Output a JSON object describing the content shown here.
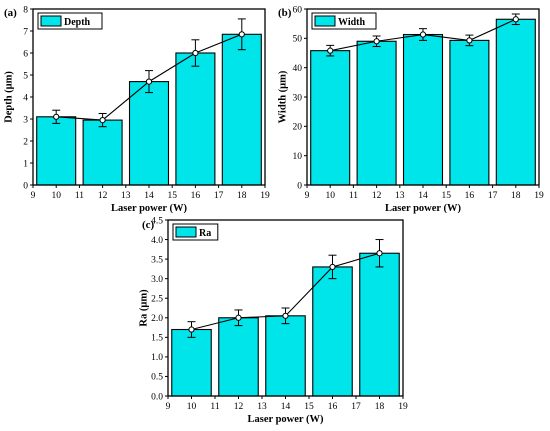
{
  "colors": {
    "bar": "#00e5ea",
    "stroke": "#000000",
    "marker": "#ffffff"
  },
  "chart_data": [
    {
      "type": "bar",
      "panel_label": "(a)",
      "xlabel": "Laser power (W)",
      "ylabel": "Depth (μm)",
      "legend": "Depth",
      "legend_position": "top-left",
      "xlim": [
        9,
        19
      ],
      "ylim": [
        0,
        8
      ],
      "xticks": [
        9,
        10,
        11,
        12,
        13,
        14,
        15,
        16,
        17,
        18,
        19
      ],
      "yticks": [
        0,
        1,
        2,
        3,
        4,
        5,
        6,
        7,
        8
      ],
      "series": [
        {
          "x": [
            10,
            12,
            14,
            16,
            18
          ],
          "values": [
            3.1,
            2.95,
            4.7,
            6.0,
            6.85
          ],
          "errors": [
            0.3,
            0.3,
            0.5,
            0.6,
            0.7
          ]
        }
      ],
      "trend_line": true
    },
    {
      "type": "bar",
      "panel_label": "(b)",
      "xlabel": "Laser power (W)",
      "ylabel": "Width (μm)",
      "legend": "Width",
      "legend_position": "top-left",
      "xlim": [
        9,
        19
      ],
      "ylim": [
        0,
        60
      ],
      "xticks": [
        9,
        10,
        11,
        12,
        13,
        14,
        15,
        16,
        17,
        18,
        19
      ],
      "yticks": [
        0,
        10,
        20,
        30,
        40,
        50,
        60
      ],
      "series": [
        {
          "x": [
            10,
            12,
            14,
            16,
            18
          ],
          "values": [
            45.8,
            49.0,
            51.3,
            49.3,
            56.5
          ],
          "errors": [
            1.8,
            1.8,
            2.0,
            1.8,
            1.8
          ]
        }
      ],
      "trend_line": true
    },
    {
      "type": "bar",
      "panel_label": "(c)",
      "xlabel": "Laser power (W)",
      "ylabel": "Ra (μm)",
      "legend": "Ra",
      "legend_position": "top-left",
      "xlim": [
        9,
        19
      ],
      "ylim": [
        0,
        4.5
      ],
      "xticks": [
        9,
        10,
        11,
        12,
        13,
        14,
        15,
        16,
        17,
        18,
        19
      ],
      "yticks": [
        "0.0",
        "0.5",
        "1.0",
        "1.5",
        "2.0",
        "2.5",
        "3.0",
        "3.5",
        "4.0",
        "4.5"
      ],
      "series": [
        {
          "x": [
            10,
            12,
            14,
            16,
            18
          ],
          "values": [
            1.7,
            2.0,
            2.05,
            3.3,
            3.65
          ],
          "errors": [
            0.2,
            0.2,
            0.2,
            0.3,
            0.35
          ]
        }
      ],
      "trend_line": true
    }
  ]
}
